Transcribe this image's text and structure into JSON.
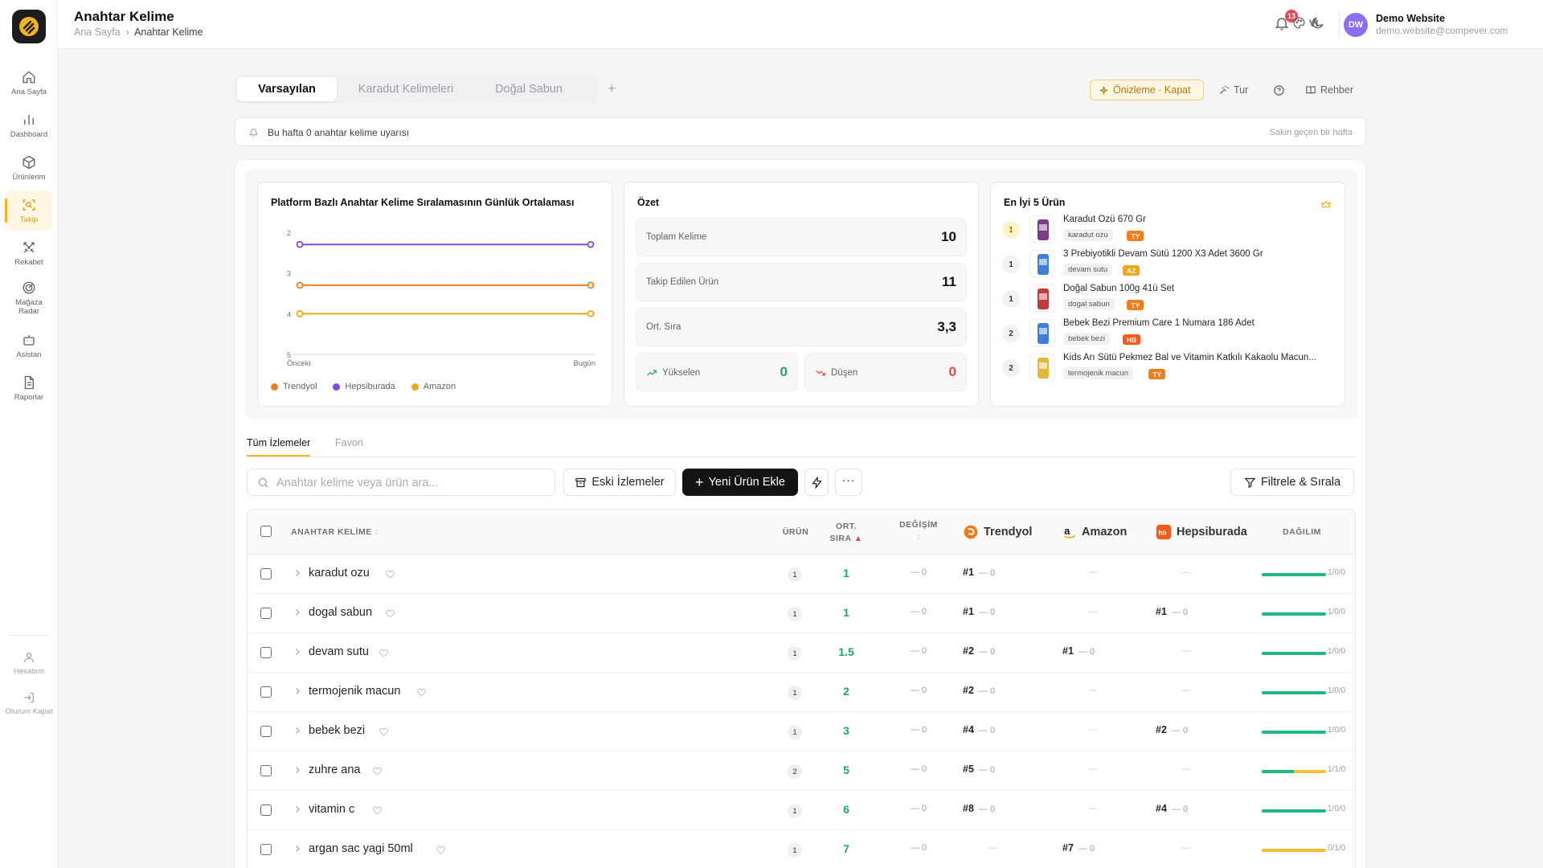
{
  "header": {
    "title": "Anahtar Kelime",
    "breadcrumb": [
      "Ana Sayfa",
      "Anahtar Kelime"
    ],
    "notification_count": "13",
    "language": "VI",
    "user": {
      "initials": "DW",
      "name": "Demo Website",
      "email": "demo.website@compever.com"
    }
  },
  "sidebar": {
    "items": [
      {
        "label": "Ana Sayfa",
        "icon": "home-icon"
      },
      {
        "label": "Dashboard",
        "icon": "bar-chart-icon"
      },
      {
        "label": "Ürünlerim",
        "icon": "box-icon"
      },
      {
        "label": "Takip",
        "icon": "scan-search-icon",
        "active": true
      },
      {
        "label": "Rekabet",
        "icon": "swords-icon"
      },
      {
        "label": "Mağaza Radar",
        "icon": "radar-icon"
      },
      {
        "label": "Asistan",
        "icon": "bot-icon"
      },
      {
        "label": "Raporlar",
        "icon": "file-text-icon"
      }
    ],
    "bottom_items": [
      {
        "label": "Hesabım",
        "icon": "user-icon"
      },
      {
        "label": "Oturum Kapat",
        "icon": "logout-icon"
      }
    ]
  },
  "page_tabs": [
    {
      "label": "Varsayılan",
      "active": true
    },
    {
      "label": "Karadut Kelimeleri"
    },
    {
      "label": "Doğal Sabun"
    }
  ],
  "toolbar": {
    "preview": "Önizleme · Kapat",
    "tour": "Tur",
    "guide": "Rehber"
  },
  "alert": {
    "text": "Bu hafta 0 anahtar kelime uyarısı",
    "right": "Sakin geçen bir hafta"
  },
  "chart_card": {
    "title": "Platform Bazlı Anahtar Kelime Sıralamasının Günlük Ortalaması",
    "x_start": "Önceki",
    "x_end": "Bugün",
    "legend": [
      "Trendyol",
      "Hepsiburada",
      "Amazon"
    ]
  },
  "chart_data": {
    "type": "line",
    "title": "Platform Bazlı Anahtar Kelime Sıralamasının Günlük Ortalaması",
    "x": [
      "Önceki",
      "Bugün"
    ],
    "ylim": [
      2,
      5
    ],
    "y_inverted": true,
    "y_ticks": [
      "2",
      "3",
      "4",
      "5"
    ],
    "series": [
      {
        "name": "Hepsiburada",
        "color": "#7c4ddc",
        "values": [
          2.3,
          2.3
        ]
      },
      {
        "name": "Trendyol",
        "color": "#f07f1b",
        "values": [
          3.3,
          3.3
        ]
      },
      {
        "name": "Amazon",
        "color": "#f0a71b",
        "values": [
          4.0,
          4.0
        ]
      }
    ],
    "legend_position": "bottom-left"
  },
  "summary": {
    "title": "Özet",
    "total_keywords": {
      "label": "Toplam Kelime",
      "value": "10"
    },
    "tracked_products": {
      "label": "Takip Edilen Ürün",
      "value": "11"
    },
    "avg_rank": {
      "label": "Ort. Sıra",
      "value": "3,3"
    },
    "rising": {
      "label": "Yükselen",
      "value": "0"
    },
    "falling": {
      "label": "Düşen",
      "value": "0"
    }
  },
  "top_products": {
    "title": "En İyi 5 Ürün",
    "items": [
      {
        "rank": "1",
        "name": "Karadut Özü 670 Gr",
        "tag": "karadut ozu",
        "market": "TY",
        "market_color": "#f07f1b",
        "thumb": "#7b3a8a"
      },
      {
        "rank": "1",
        "name": "3 Prebiyotikli Devam Sütü 1200 X3 Adet 3600 Gr",
        "tag": "devam sutu",
        "market": "AZ",
        "market_color": "#f0a71b",
        "thumb": "#3f7ed6"
      },
      {
        "rank": "1",
        "name": "Doğal Sabun 100g 41ü Set",
        "tag": "dogal sabun",
        "market": "TY",
        "market_color": "#f07f1b",
        "thumb": "#c23b3b"
      },
      {
        "rank": "2",
        "name": "Bebek Bezi Premium Care 1 Numara 186 Adet",
        "tag": "bebek bezi",
        "market": "HB",
        "market_color": "#f25c1b",
        "thumb": "#3f7ed6"
      },
      {
        "rank": "2",
        "name": "Kids Arı Sütü Pekmez Bal ve Vitamin Katkılı Kakaolu Macun...",
        "tag": "termojenik macun",
        "market": "TY",
        "market_color": "#f07f1b",
        "thumb": "#e0b93a"
      }
    ]
  },
  "sub_tabs": [
    {
      "label": "Tüm İzlemeler",
      "active": true
    },
    {
      "label": "Favori"
    }
  ],
  "search": {
    "placeholder": "Anahtar kelime veya ürün ara...",
    "value": ""
  },
  "actions": {
    "old": "Eski İzlemeler",
    "add": "Yeni Ürün Ekle",
    "filter": "Filtrele & Sırala"
  },
  "table": {
    "headers": {
      "keyword": "ANAHTAR KELİME",
      "product": "ÜRÜN",
      "avg_rank": "ORT. SIRA",
      "change": "DEĞİŞİM",
      "distribution": "DAĞILIM"
    },
    "markets": [
      "Trendyol",
      "Amazon",
      "Hepsiburada"
    ],
    "rows": [
      {
        "keyword": "karadut ozu",
        "count": "1",
        "avg": "1",
        "change": "— 0",
        "ty": "#1",
        "ty_chg": "— 0",
        "az": "—",
        "az_chg": "",
        "hb": "—",
        "hb_chg": "",
        "dist": "1/0/0",
        "dist_parts": [
          1,
          0,
          0
        ]
      },
      {
        "keyword": "dogal sabun",
        "count": "1",
        "avg": "1",
        "change": "— 0",
        "ty": "#1",
        "ty_chg": "— 0",
        "az": "—",
        "az_chg": "",
        "hb": "#1",
        "hb_chg": "— 0",
        "dist": "1/0/0",
        "dist_parts": [
          1,
          0,
          0
        ]
      },
      {
        "keyword": "devam sutu",
        "count": "1",
        "avg": "1.5",
        "change": "— 0",
        "ty": "#2",
        "ty_chg": "— 0",
        "az": "#1",
        "az_chg": "— 0",
        "hb": "—",
        "hb_chg": "",
        "dist": "1/0/0",
        "dist_parts": [
          1,
          0,
          0
        ]
      },
      {
        "keyword": "termojenik macun",
        "count": "1",
        "avg": "2",
        "change": "— 0",
        "ty": "#2",
        "ty_chg": "— 0",
        "az": "—",
        "az_chg": "",
        "hb": "—",
        "hb_chg": "",
        "dist": "1/0/0",
        "dist_parts": [
          1,
          0,
          0
        ]
      },
      {
        "keyword": "bebek bezi",
        "count": "1",
        "avg": "3",
        "change": "— 0",
        "ty": "#4",
        "ty_chg": "— 0",
        "az": "—",
        "az_chg": "",
        "hb": "#2",
        "hb_chg": "— 0",
        "dist": "1/0/0",
        "dist_parts": [
          1,
          0,
          0
        ]
      },
      {
        "keyword": "zuhre ana",
        "count": "2",
        "avg": "5",
        "change": "— 0",
        "ty": "#5",
        "ty_chg": "— 0",
        "az": "—",
        "az_chg": "",
        "hb": "—",
        "hb_chg": "",
        "dist": "1/1/0",
        "dist_parts": [
          1,
          1,
          0
        ]
      },
      {
        "keyword": "vitamin c",
        "count": "1",
        "avg": "6",
        "change": "— 0",
        "ty": "#8",
        "ty_chg": "— 0",
        "az": "—",
        "az_chg": "",
        "hb": "#4",
        "hb_chg": "— 0",
        "dist": "1/0/0",
        "dist_parts": [
          1,
          0,
          0
        ]
      },
      {
        "keyword": "argan sac yagi 50ml",
        "count": "1",
        "avg": "7",
        "change": "— 0",
        "ty": "—",
        "ty_chg": "",
        "az": "#7",
        "az_chg": "— 0",
        "hb": "—",
        "hb_chg": "",
        "dist": "0/1/0",
        "dist_parts": [
          0,
          1,
          0
        ]
      }
    ]
  },
  "colors": {
    "accent": "#f1b41b",
    "green": "#1fa46b",
    "red": "#e5484d",
    "dist_green": "#1fb980",
    "dist_yellow": "#f5c12e"
  }
}
